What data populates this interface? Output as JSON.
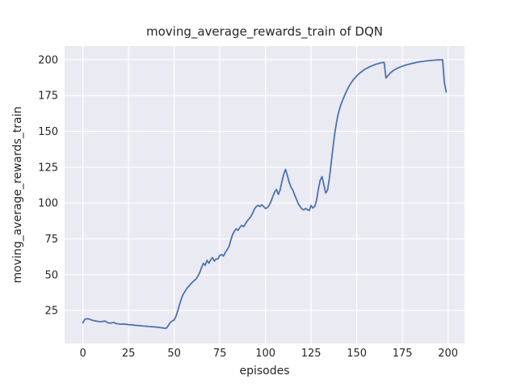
{
  "chart_data": {
    "type": "line",
    "title": "moving_average_rewards_train of DQN",
    "xlabel": "episodes",
    "ylabel": "moving_average_rewards_train",
    "xlim": [
      -10,
      209
    ],
    "ylim": [
      2,
      209.5
    ],
    "xticks": [
      0,
      25,
      50,
      75,
      100,
      125,
      150,
      175,
      200
    ],
    "yticks": [
      25,
      50,
      75,
      100,
      125,
      150,
      175,
      200
    ],
    "grid": true,
    "legend": null,
    "line_color": "#4C72B0",
    "plot_bg": "#EAEAF2",
    "grid_color": "#FFFFFF",
    "text_color": "#262626",
    "series": [
      {
        "name": "moving_average_rewards_train",
        "x_start": 0,
        "x_step": 1,
        "values": [
          16.5,
          18.8,
          19.3,
          19.2,
          18.8,
          18.3,
          18.0,
          17.8,
          17.5,
          17.3,
          17.2,
          17.5,
          17.7,
          17.0,
          16.4,
          16.2,
          16.5,
          16.7,
          16.0,
          15.8,
          15.6,
          15.5,
          15.7,
          15.4,
          15.5,
          15.2,
          15.0,
          15.1,
          14.8,
          14.7,
          14.6,
          14.5,
          14.4,
          14.2,
          14.1,
          14.0,
          13.9,
          13.8,
          13.7,
          13.6,
          13.5,
          13.4,
          13.2,
          13.0,
          12.8,
          12.6,
          13.0,
          15.0,
          16.9,
          17.8,
          18.5,
          21.0,
          25.0,
          29.5,
          33.5,
          36.5,
          38.5,
          40.5,
          42.0,
          43.5,
          44.8,
          46.0,
          47.0,
          49.0,
          51.5,
          55.0,
          58.0,
          56.5,
          60.0,
          58.0,
          60.5,
          62.0,
          59.5,
          61.0,
          61.0,
          63.5,
          64.0,
          63.0,
          65.5,
          67.5,
          69.5,
          74.0,
          78.0,
          80.5,
          82.0,
          81.0,
          83.0,
          84.5,
          83.5,
          85.5,
          87.5,
          89.0,
          90.5,
          93.0,
          96.0,
          97.5,
          98.5,
          97.5,
          98.8,
          97.5,
          96.2,
          96.8,
          98.5,
          101.0,
          104.5,
          107.5,
          109.5,
          106.0,
          109.0,
          115.0,
          120.0,
          123.5,
          119.0,
          114.5,
          111.0,
          109.0,
          105.5,
          102.5,
          99.5,
          97.5,
          95.8,
          95.2,
          96.3,
          95.3,
          94.8,
          98.3,
          96.5,
          97.8,
          102.0,
          110.0,
          116.0,
          118.5,
          112.5,
          107.0,
          109.0,
          117.0,
          128.0,
          139.0,
          149.0,
          157.0,
          163.0,
          167.5,
          171.0,
          174.0,
          177.0,
          179.5,
          182.0,
          184.0,
          185.8,
          187.3,
          188.7,
          190.0,
          191.0,
          192.0,
          192.9,
          193.7,
          194.4,
          195.0,
          195.6,
          196.1,
          196.6,
          197.0,
          197.4,
          197.7,
          198.0,
          198.2,
          187.2,
          188.8,
          190.2,
          191.4,
          192.4,
          193.2,
          193.9,
          194.5,
          195.0,
          195.5,
          195.9,
          196.3,
          196.7,
          197.0,
          197.3,
          197.6,
          197.9,
          198.2,
          198.4,
          198.6,
          198.8,
          199.0,
          199.2,
          199.3,
          199.4,
          199.5,
          199.6,
          199.7,
          199.8,
          199.9,
          199.9,
          199.9,
          184.0,
          177.5
        ]
      }
    ]
  }
}
